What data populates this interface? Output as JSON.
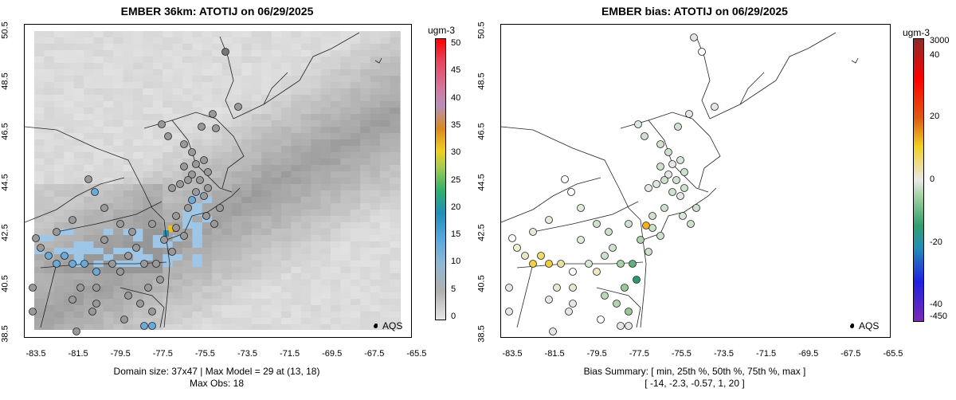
{
  "left_panel": {
    "title": "EMBER 36km: ATOTIJ on 06/29/2025",
    "colorbar_unit": "ugm-3",
    "colorbar_labels": [
      "50",
      "45",
      "40",
      "35",
      "30",
      "25",
      "20",
      "15",
      "10",
      "5",
      "0"
    ],
    "caption_line1": "Domain size: 37x47 | Max Model = 29 at (13, 18)",
    "caption_line2": "Max Obs: 18",
    "legend": "AQS",
    "colors": {
      "low": "#dcdcdc",
      "mid": "#9ec6e6",
      "high": "#f2c200",
      "peak": "#e8442e",
      "site": "#8f8f8f"
    }
  },
  "right_panel": {
    "title": "EMBER bias: ATOTIJ on 06/29/2025",
    "colorbar_unit": "ugm-3",
    "colorbar_labels": [
      "3000",
      "40",
      "20",
      "0",
      "-20",
      "-40",
      "-450"
    ],
    "caption_line1": "Bias Summary: [ min, 25th %, 50th %, 75th %, max ]",
    "caption_line2": "[ -14,  -2.3,  -0.57,  1,  20 ]",
    "legend": "AQS"
  },
  "axes": {
    "x_ticks": [
      "-83.5",
      "-81.5",
      "-79.5",
      "-77.5",
      "-75.5",
      "-73.5",
      "-71.5",
      "-69.5",
      "-67.5",
      "-65.5"
    ],
    "y_ticks": [
      "50.5",
      "48.5",
      "46.5",
      "44.5",
      "42.5",
      "40.5",
      "38.5"
    ]
  }
}
